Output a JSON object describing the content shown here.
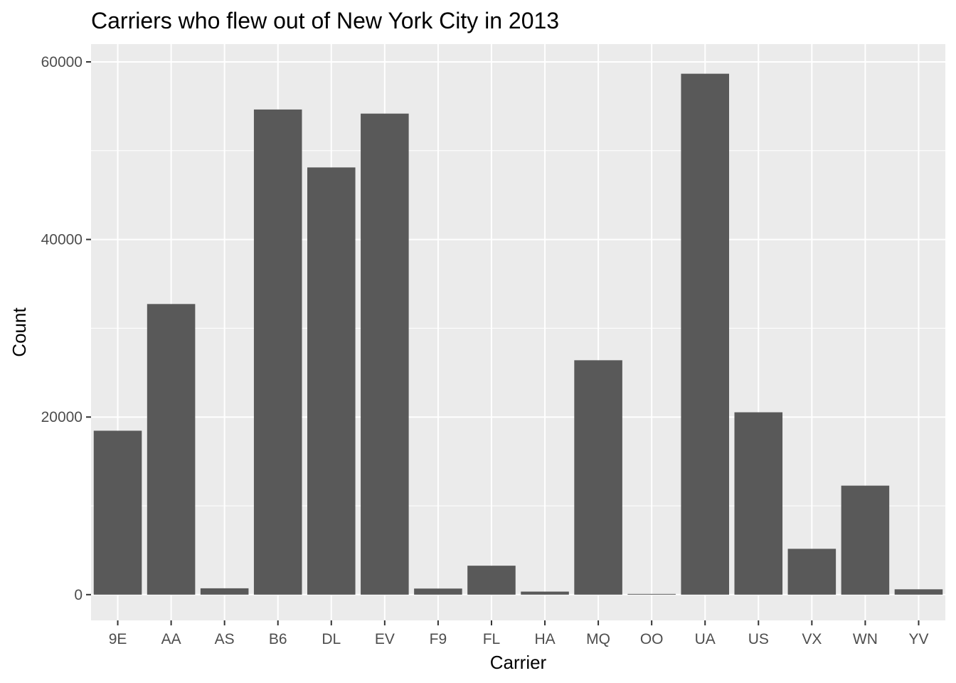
{
  "chart_data": {
    "type": "bar",
    "title": "Carriers who flew out of New York City in 2013",
    "xlabel": "Carrier",
    "ylabel": "Count",
    "categories": [
      "9E",
      "AA",
      "AS",
      "B6",
      "DL",
      "EV",
      "F9",
      "FL",
      "HA",
      "MQ",
      "OO",
      "UA",
      "US",
      "VX",
      "WN",
      "YV"
    ],
    "values": [
      18460,
      32729,
      714,
      54635,
      48110,
      54173,
      685,
      3260,
      342,
      26397,
      32,
      58665,
      20536,
      5162,
      12275,
      601
    ],
    "ylim": [
      -2900,
      62000
    ],
    "yticks": [
      0,
      20000,
      40000,
      60000
    ],
    "ytick_labels": [
      "0",
      "20000",
      "40000",
      "60000"
    ],
    "grid": true,
    "legend": "none",
    "colors": {
      "bar": "#595959",
      "panel": "#ebebeb",
      "grid": "#ffffff",
      "tick_mark": "#333333",
      "tick_text": "#4d4d4d",
      "text": "#000000"
    }
  }
}
